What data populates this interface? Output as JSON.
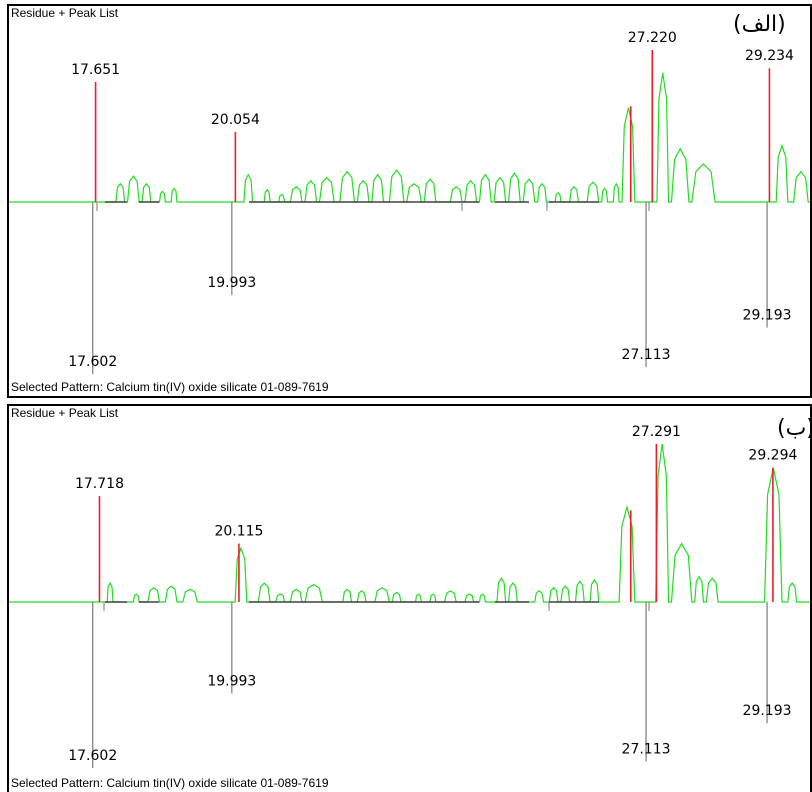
{
  "chart_data": [
    {
      "type": "stem",
      "panel_label": "(الف)",
      "title": "Residue + Peak List",
      "footer": "Selected Pattern: Calcium tin(IV) oxide silicate 01-089-7619",
      "xlim": [
        16.3,
        30.0
      ],
      "colors": {
        "observed": "#e8202a",
        "residue": "#22dd22",
        "reference": "#7a7a7a",
        "baseline_dark": "#404040"
      },
      "observed_peaks": [
        {
          "x": 17.651,
          "label": "17.651",
          "rel": 0.79
        },
        {
          "x": 20.054,
          "label": "20.054",
          "rel": 0.46
        },
        {
          "x": 26.85,
          "label": "",
          "rel": 0.63
        },
        {
          "x": 27.22,
          "label": "27.220",
          "rel": 1.0
        },
        {
          "x": 29.234,
          "label": "29.234",
          "rel": 0.88
        }
      ],
      "reference_peaks": [
        {
          "x": 17.602,
          "label": "17.602",
          "rel": 1.0
        },
        {
          "x": 19.993,
          "label": "19.993",
          "rel": 0.54
        },
        {
          "x": 27.113,
          "label": "27.113",
          "rel": 0.96
        },
        {
          "x": 29.193,
          "label": "29.193",
          "rel": 0.73
        }
      ]
    },
    {
      "type": "stem",
      "panel_label": "(ب)",
      "title": "Residue + Peak List",
      "footer": "Selected Pattern: Calcium tin(IV) oxide silicate 01-089-7619",
      "xlim": [
        16.3,
        30.0
      ],
      "colors": {
        "observed": "#e8202a",
        "residue": "#22dd22",
        "reference": "#7a7a7a",
        "baseline_dark": "#404040"
      },
      "observed_peaks": [
        {
          "x": 17.718,
          "label": "17.718",
          "rel": 0.67
        },
        {
          "x": 20.115,
          "label": "20.115",
          "rel": 0.37
        },
        {
          "x": 26.85,
          "label": "",
          "rel": 0.58
        },
        {
          "x": 27.291,
          "label": "27.291",
          "rel": 1.0
        },
        {
          "x": 29.294,
          "label": "29.294",
          "rel": 0.85
        }
      ],
      "reference_peaks": [
        {
          "x": 17.602,
          "label": "17.602",
          "rel": 1.0
        },
        {
          "x": 19.993,
          "label": "19.993",
          "rel": 0.55
        },
        {
          "x": 27.113,
          "label": "27.113",
          "rel": 0.96
        },
        {
          "x": 29.193,
          "label": "29.193",
          "rel": 0.73
        }
      ]
    }
  ]
}
